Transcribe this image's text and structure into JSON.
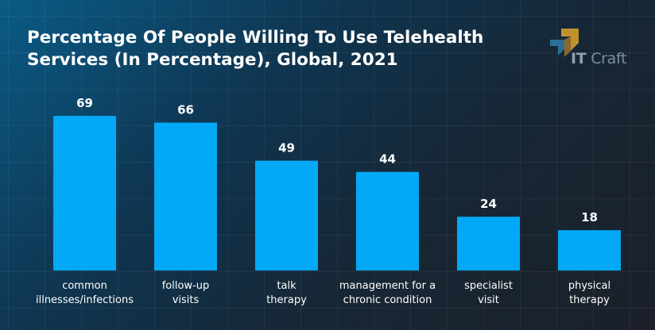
{
  "title": "Percentage Of People Willing To Use Telehealth Services (In Percentage), Global, 2021",
  "logo": {
    "prefix": "IT",
    "suffix": "Craft"
  },
  "colors": {
    "bar": "#03a9f4",
    "label": "#ffffff",
    "logo": "#8fa0ab",
    "logo_accent": "#c0922e"
  },
  "chart_data": {
    "type": "bar",
    "title": "Percentage Of People Willing To Use Telehealth Services (In Percentage), Global, 2021",
    "categories": [
      [
        "common",
        "illnesses/infections"
      ],
      [
        "follow-up",
        "visits"
      ],
      [
        "talk",
        "therapy"
      ],
      [
        "management for a",
        "chronic condition"
      ],
      [
        "specialist",
        "visit"
      ],
      [
        "physical",
        "therapy"
      ]
    ],
    "values": [
      69,
      66,
      49,
      44,
      24,
      18
    ],
    "ylim": [
      0,
      100
    ],
    "grid": true,
    "legend": "none"
  }
}
